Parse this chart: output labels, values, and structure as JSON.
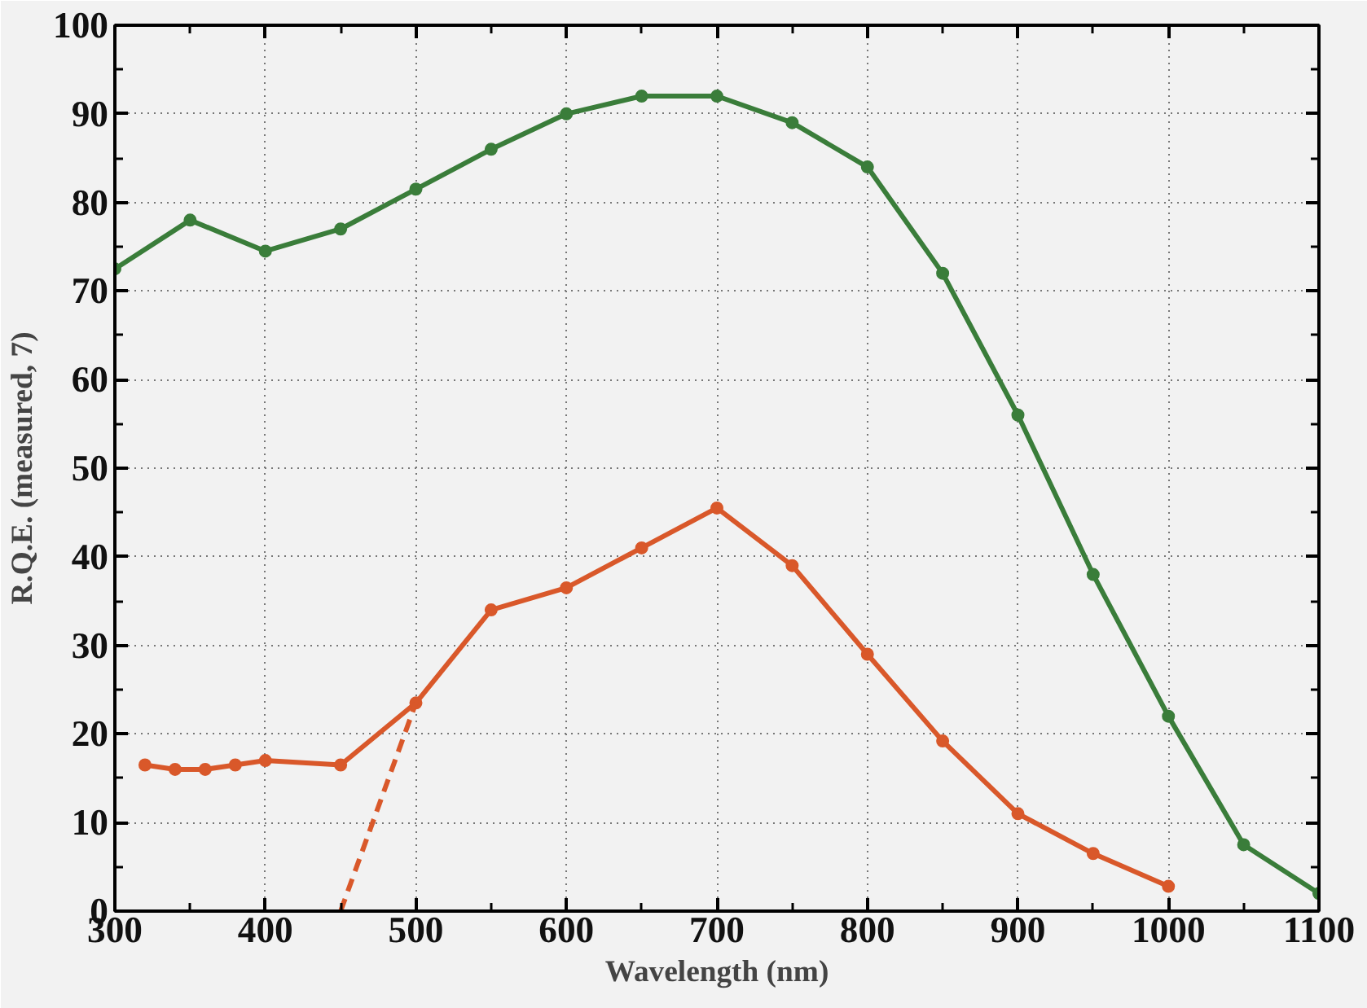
{
  "chart_data": {
    "type": "line",
    "xlabel": "Wavelength (nm)",
    "ylabel": "R.Q.E. (measured, 7)",
    "xlim": [
      300,
      1100
    ],
    "ylim": [
      0,
      100
    ],
    "xticks": [
      300,
      400,
      500,
      600,
      700,
      800,
      900,
      1000,
      1100
    ],
    "yticks": [
      0,
      10,
      20,
      30,
      40,
      50,
      60,
      70,
      80,
      90,
      100
    ],
    "grid": true,
    "marker": "circle",
    "line_style": "solid",
    "series": [
      {
        "color": "#3a7d3a",
        "x": [
          300,
          350,
          400,
          450,
          500,
          550,
          600,
          650,
          700,
          750,
          800,
          850,
          900,
          950,
          1000,
          1050,
          1100
        ],
        "values": [
          72.5,
          78,
          74.5,
          77,
          81.5,
          86,
          90,
          92,
          92,
          89,
          84,
          72,
          56,
          38,
          22,
          7.5,
          2
        ]
      },
      {
        "color": "#d9582a",
        "x": [
          320,
          340,
          360,
          380,
          400,
          450,
          500,
          550,
          600,
          650,
          700,
          750,
          800,
          850,
          900,
          950,
          1000
        ],
        "values": [
          16.5,
          16,
          16,
          16.5,
          17,
          16.5,
          23.5,
          34,
          36.5,
          41,
          45.5,
          39,
          29,
          19.2,
          11,
          6.5,
          2.8
        ]
      },
      {
        "color": "#d9582a",
        "x": [
          450,
          500
        ],
        "values": [
          0,
          23.5
        ],
        "marker": "none",
        "line_style": "dashed"
      }
    ]
  }
}
